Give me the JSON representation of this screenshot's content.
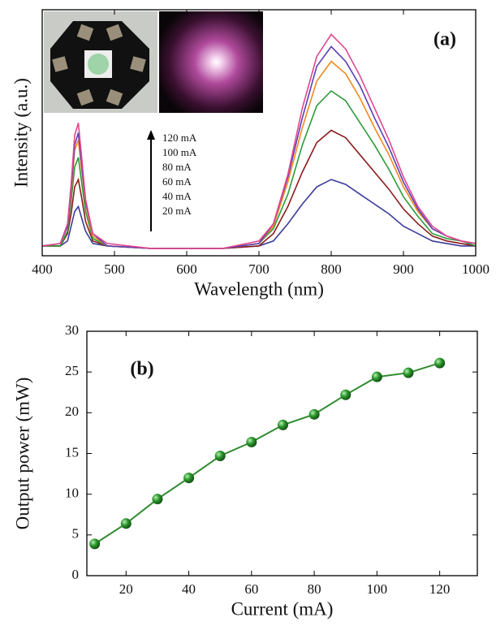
{
  "chart_data": [
    {
      "type": "line",
      "label": "(a)",
      "xlabel": "Wavelength (nm)",
      "ylabel": "Intensity (a.u.)",
      "x": [
        400,
        425,
        435,
        440,
        445,
        450,
        455,
        460,
        470,
        490,
        550,
        650,
        700,
        720,
        740,
        760,
        780,
        800,
        820,
        840,
        860,
        880,
        900,
        920,
        940,
        960,
        980,
        1000
      ],
      "xlim": [
        400,
        1000
      ],
      "xticks": [
        400,
        500,
        600,
        700,
        800,
        900,
        1000
      ],
      "ylim": [
        0,
        1
      ],
      "series": [
        {
          "name": "20 mA",
          "color": "#3b3b9b",
          "values": [
            0.04,
            0.04,
            0.06,
            0.12,
            0.18,
            0.2,
            0.15,
            0.1,
            0.05,
            0.04,
            0.03,
            0.03,
            0.04,
            0.06,
            0.13,
            0.21,
            0.28,
            0.31,
            0.29,
            0.25,
            0.21,
            0.17,
            0.12,
            0.09,
            0.06,
            0.05,
            0.04,
            0.04
          ]
        },
        {
          "name": "40 mA",
          "color": "#8b1c1c",
          "values": [
            0.04,
            0.04,
            0.09,
            0.17,
            0.28,
            0.31,
            0.23,
            0.14,
            0.06,
            0.04,
            0.03,
            0.03,
            0.04,
            0.09,
            0.2,
            0.34,
            0.46,
            0.51,
            0.48,
            0.41,
            0.34,
            0.27,
            0.19,
            0.13,
            0.08,
            0.06,
            0.05,
            0.04
          ]
        },
        {
          "name": "60 mA",
          "color": "#2e9a3a",
          "values": [
            0.04,
            0.04,
            0.1,
            0.22,
            0.36,
            0.4,
            0.29,
            0.18,
            0.07,
            0.04,
            0.03,
            0.03,
            0.05,
            0.11,
            0.25,
            0.45,
            0.61,
            0.67,
            0.63,
            0.54,
            0.45,
            0.35,
            0.24,
            0.16,
            0.09,
            0.07,
            0.06,
            0.04
          ]
        },
        {
          "name": "80 mA",
          "color": "#f28a1e",
          "values": [
            0.04,
            0.05,
            0.12,
            0.25,
            0.43,
            0.47,
            0.34,
            0.21,
            0.08,
            0.04,
            0.03,
            0.03,
            0.05,
            0.12,
            0.3,
            0.52,
            0.71,
            0.79,
            0.74,
            0.64,
            0.52,
            0.41,
            0.28,
            0.18,
            0.11,
            0.08,
            0.06,
            0.05
          ]
        },
        {
          "name": "100 mA",
          "color": "#5b3fb5",
          "values": [
            0.04,
            0.05,
            0.12,
            0.27,
            0.45,
            0.5,
            0.36,
            0.22,
            0.09,
            0.04,
            0.03,
            0.03,
            0.05,
            0.13,
            0.32,
            0.56,
            0.77,
            0.85,
            0.79,
            0.69,
            0.56,
            0.44,
            0.3,
            0.19,
            0.11,
            0.08,
            0.06,
            0.05
          ]
        },
        {
          "name": "120 mA",
          "color": "#e2478f",
          "values": [
            0.04,
            0.05,
            0.13,
            0.29,
            0.49,
            0.54,
            0.39,
            0.23,
            0.09,
            0.05,
            0.03,
            0.03,
            0.06,
            0.13,
            0.33,
            0.6,
            0.81,
            0.9,
            0.84,
            0.73,
            0.6,
            0.47,
            0.32,
            0.2,
            0.12,
            0.08,
            0.06,
            0.05
          ]
        }
      ]
    },
    {
      "type": "line",
      "markers": true,
      "label": "(b)",
      "xlabel": "Current (mA)",
      "ylabel": "Output power (mW)",
      "x": [
        10,
        20,
        30,
        40,
        50,
        60,
        70,
        80,
        90,
        100,
        110,
        120
      ],
      "xlim": [
        7.5,
        132
      ],
      "xticks": [
        20,
        40,
        60,
        80,
        100,
        120
      ],
      "ylim": [
        0,
        30
      ],
      "yticks": [
        0,
        5,
        10,
        15,
        20,
        25,
        30
      ],
      "series": [
        {
          "color": "#2e8b2e",
          "values": [
            3.9,
            6.4,
            9.4,
            12.0,
            14.7,
            16.4,
            18.5,
            19.8,
            22.2,
            24.4,
            24.9,
            26.1
          ]
        }
      ]
    }
  ]
}
